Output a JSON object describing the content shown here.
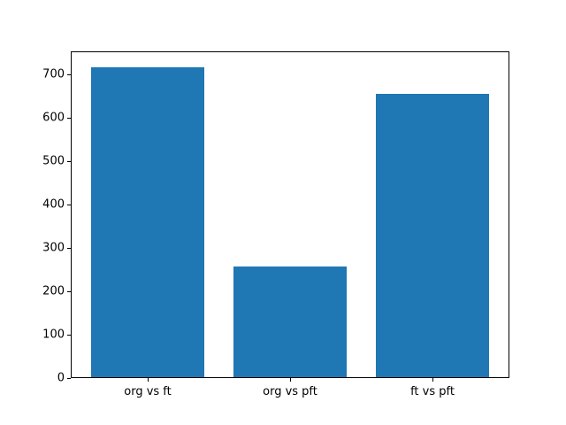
{
  "chart_data": {
    "type": "bar",
    "title": "",
    "xlabel": "",
    "ylabel": "",
    "categories": [
      "org vs ft",
      "org vs pft",
      "ft vs pft"
    ],
    "values": [
      717,
      258,
      656
    ],
    "yticks": [
      0,
      100,
      200,
      300,
      400,
      500,
      600,
      700
    ],
    "ylim": [
      0,
      753
    ],
    "xlim": [
      -0.54,
      2.54
    ],
    "bar_width": 0.8,
    "bar_color": "#1f77b4",
    "axes_color": "#000000",
    "background_color": "#ffffff",
    "grid": false,
    "legend": null
  }
}
